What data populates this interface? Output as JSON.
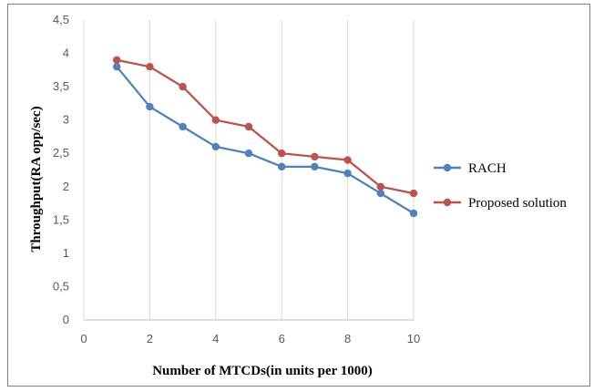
{
  "chart_data": {
    "type": "line",
    "title": "",
    "xlabel": "Number of MTCDs(in units per 1000)",
    "ylabel": "Throughput(RA opp/sec)",
    "xlim": [
      0,
      10
    ],
    "ylim": [
      0,
      4.5
    ],
    "x_ticks": [
      0,
      2,
      4,
      6,
      8,
      10
    ],
    "x_tick_labels": [
      "0",
      "2",
      "4",
      "6",
      "8",
      "10"
    ],
    "y_ticks": [
      0,
      0.5,
      1,
      1.5,
      2,
      2.5,
      3,
      3.5,
      4,
      4.5
    ],
    "y_tick_labels": [
      "0",
      "0,5",
      "1",
      "1,5",
      "2",
      "2,5",
      "3",
      "3,5",
      "4",
      "4,5"
    ],
    "grid": "vertical",
    "legend_position": "right",
    "x": [
      1,
      2,
      3,
      4,
      5,
      6,
      7,
      8,
      9,
      10
    ],
    "series": [
      {
        "name": "RACH",
        "color": "#4f81bd",
        "values": [
          3.8,
          3.2,
          2.9,
          2.6,
          2.5,
          2.3,
          2.3,
          2.2,
          1.9,
          1.6
        ]
      },
      {
        "name": "Proposed solution",
        "color": "#c0504d",
        "values": [
          3.9,
          3.8,
          3.5,
          3.0,
          2.9,
          2.5,
          2.45,
          2.4,
          2.0,
          1.9
        ]
      }
    ]
  }
}
